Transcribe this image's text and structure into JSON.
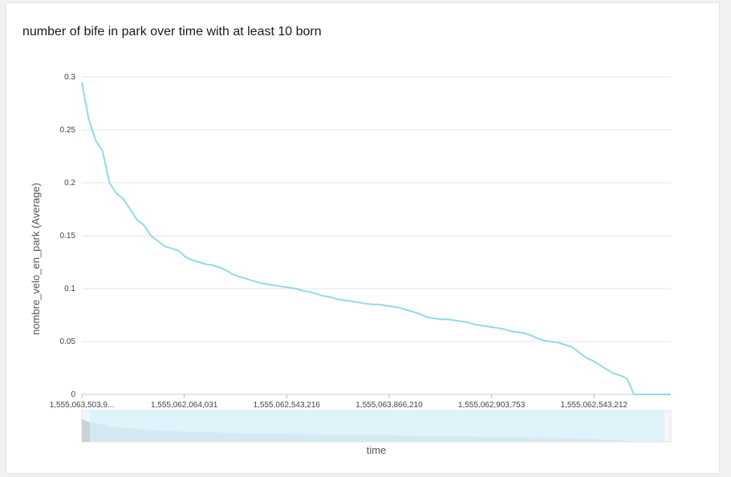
{
  "chart_data": {
    "type": "line",
    "title": "number of bife in park over time with at least 10 born",
    "xlabel": "time",
    "ylabel": "nombre_velo_en_park (Average)",
    "ylim": [
      0,
      0.3
    ],
    "yticks": [
      "0",
      "0.05",
      "0.1",
      "0.15",
      "0.2",
      "0.25",
      "0.3"
    ],
    "xticks": [
      "1,555,063,503,9...",
      "1,555,062,064,031",
      "1,555,062,543,216",
      "1,555,063,866,210",
      "1,555,062,903,753",
      "1,555,062,543,212"
    ],
    "grid": true,
    "series_color": "#8fdaea",
    "brush_fill_color": "#d8f0fb",
    "brush_area_color": "#c9d2d7",
    "series": [
      {
        "values": [
          0.295,
          0.26,
          0.24,
          0.23,
          0.2,
          0.19,
          0.185,
          0.175,
          0.165,
          0.16,
          0.15,
          0.145,
          0.14,
          0.138,
          0.136,
          0.13,
          0.127,
          0.125,
          0.123,
          0.122,
          0.12,
          0.117,
          0.113,
          0.111,
          0.109,
          0.107,
          0.105,
          0.104,
          0.103,
          0.102,
          0.101,
          0.1,
          0.098,
          0.097,
          0.095,
          0.093,
          0.092,
          0.09,
          0.089,
          0.088,
          0.087,
          0.086,
          0.085,
          0.085,
          0.084,
          0.083,
          0.082,
          0.08,
          0.078,
          0.076,
          0.073,
          0.072,
          0.071,
          0.071,
          0.07,
          0.069,
          0.068,
          0.066,
          0.065,
          0.064,
          0.063,
          0.062,
          0.06,
          0.059,
          0.058,
          0.056,
          0.053,
          0.051,
          0.05,
          0.049,
          0.047,
          0.045,
          0.04,
          0.035,
          0.032,
          0.028,
          0.024,
          0.02,
          0.018,
          0.015,
          0.0,
          0.0,
          0.0,
          0.0,
          0.0
        ]
      }
    ]
  }
}
